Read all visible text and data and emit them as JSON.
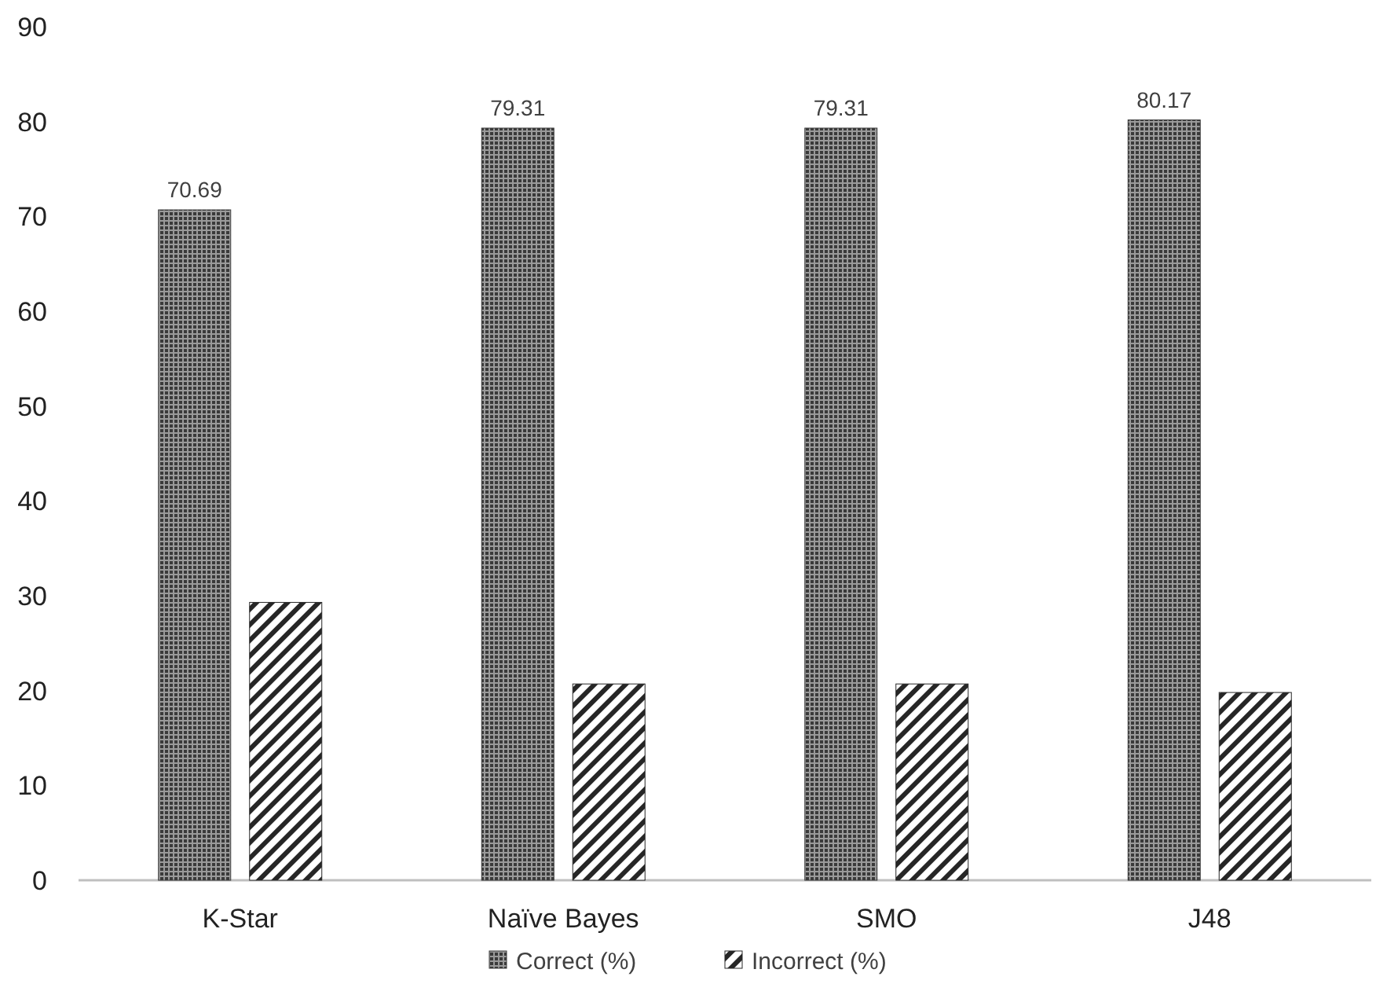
{
  "chart_data": {
    "type": "bar",
    "categories": [
      "K-Star",
      "Naïve Bayes",
      "SMO",
      "J48"
    ],
    "series": [
      {
        "name": "Correct (%)",
        "color": "#3a3a3a",
        "values": [
          70.69,
          79.31,
          79.31,
          80.17
        ],
        "value_labels": [
          "70.69",
          "79.31",
          "79.31",
          "80.17"
        ]
      },
      {
        "name": "Incorrect (%)",
        "color": "#262626",
        "values": [
          29.3,
          20.7,
          20.7,
          19.8
        ]
      }
    ],
    "ylim": [
      0,
      90
    ],
    "yticks": [
      0,
      10,
      20,
      30,
      40,
      50,
      60,
      70,
      80,
      90
    ],
    "grid": false,
    "legend": "bottom"
  }
}
